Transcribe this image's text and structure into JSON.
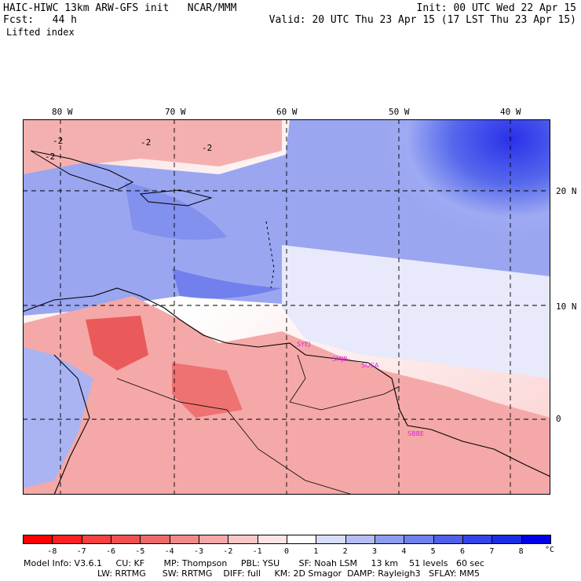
{
  "header": {
    "title_left": "HAIC-HIWC 13km ARW-GFS init   NCAR/MMM",
    "forecast_label": "Fcst:   44 h",
    "field_name": "Lifted index",
    "init": "Init: 00 UTC Wed 22 Apr 15",
    "valid": "Valid: 20 UTC Thu 23 Apr 15 (17 LST Thu 23 Apr 15)"
  },
  "map": {
    "lon_labels": [
      "80 W",
      "70 W",
      "60 W",
      "50 W",
      "40 W"
    ],
    "lat_labels": [
      "20 N",
      "10 N",
      "0"
    ],
    "contour_labels": [
      "-2",
      "-2",
      "-2",
      "-2"
    ],
    "stations": [
      "SYEJ",
      "SMJP",
      "SOCA",
      "SBBE"
    ],
    "colors": {
      "station": "#dd22dd",
      "stable_deep": "#1a1aee",
      "stable_light": "#c8d0f8",
      "neutral": "#ffffff",
      "unstable_light": "#fbd0d0",
      "unstable_mid": "#f29a9a",
      "unstable_strong": "#ea5a5a"
    }
  },
  "colorbar": {
    "ticks": [
      "-8",
      "-7",
      "-6",
      "-5",
      "-4",
      "-3",
      "-2",
      "-1",
      "0",
      "1",
      "2",
      "3",
      "4",
      "5",
      "6",
      "7",
      "8"
    ],
    "unit": "°C",
    "colors": [
      "#ff0000",
      "#ff2020",
      "#f84040",
      "#f05050",
      "#ee6a6a",
      "#f08a8a",
      "#f5a8a8",
      "#f9c6c6",
      "#fde4e4",
      "#ffffff",
      "#d8defa",
      "#b4bef4",
      "#8e9cee",
      "#7080ec",
      "#5060ea",
      "#3445e8",
      "#1a2ee6",
      "#0000e8"
    ]
  },
  "footer": {
    "line1": "Model Info: V3.6.1     CU: KF       MP: Thompson     PBL: YSU       SF: Noah LSM     13 km    51 levels   60 sec",
    "line2": "LW: RRTMG      SW: RRTMG    DIFF: full     KM: 2D Smagor  DAMP: Rayleigh3   SFLAY: MM5"
  }
}
